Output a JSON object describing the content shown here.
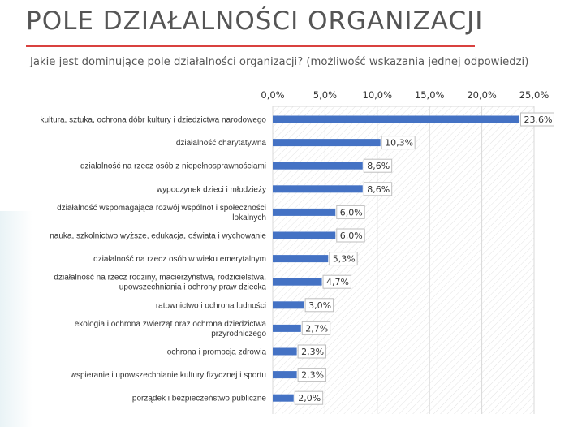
{
  "header": {
    "title": "POLE DZIAŁALNOŚCI ORGANIZACJI",
    "question": "Jakie jest dominujące pole działalności organizacji? (możliwość wskazania jednej odpowiedzi)"
  },
  "colors": {
    "bar": "#4472c4",
    "accent_rule": "#d9413f",
    "grid": "#d9d9d9"
  },
  "chart_data": {
    "type": "bar",
    "orientation": "horizontal",
    "title": "",
    "xlabel": "",
    "ylabel": "",
    "xlim": [
      0,
      25
    ],
    "axis_position": "top",
    "grid": true,
    "tick_values": [
      0,
      5,
      10,
      15,
      20,
      25
    ],
    "tick_labels": [
      "0,0%",
      "5,0%",
      "10,0%",
      "15,0%",
      "20,0%",
      "25,0%"
    ],
    "categories": [
      [
        "kultura, sztuka, ochrona dóbr kultury i dziedzictwa narodowego"
      ],
      [
        "działalność charytatywna"
      ],
      [
        "działalność na rzecz osób z niepełnosprawnościami"
      ],
      [
        "wypoczynek dzieci i młodzieży"
      ],
      [
        "działalność wspomagająca rozwój wspólnot i społeczności",
        "lokalnych"
      ],
      [
        "nauka, szkolnictwo wyższe, edukacja, oświata i wychowanie"
      ],
      [
        "działalność na rzecz osób w wieku emerytalnym"
      ],
      [
        "działalność na rzecz rodziny, macierzyństwa, rodzicielstwa,",
        "upowszechniania i ochrony praw dziecka"
      ],
      [
        "ratownictwo i ochrona ludności"
      ],
      [
        "ekologia i ochrona zwierząt oraz ochrona dziedzictwa",
        "przyrodniczego"
      ],
      [
        "ochrona i promocja zdrowia"
      ],
      [
        "wspieranie i upowszechnianie kultury fizycznej i sportu"
      ],
      [
        "porządek i bezpieczeństwo publiczne"
      ]
    ],
    "values": [
      23.6,
      10.3,
      8.6,
      8.6,
      6.0,
      6.0,
      5.3,
      4.7,
      3.0,
      2.7,
      2.3,
      2.3,
      2.0
    ],
    "value_labels": [
      "23,6%",
      "10,3%",
      "8,6%",
      "8,6%",
      "6,0%",
      "6,0%",
      "5,3%",
      "4,7%",
      "3,0%",
      "2,7%",
      "2,3%",
      "2,3%",
      "2,0%"
    ]
  }
}
